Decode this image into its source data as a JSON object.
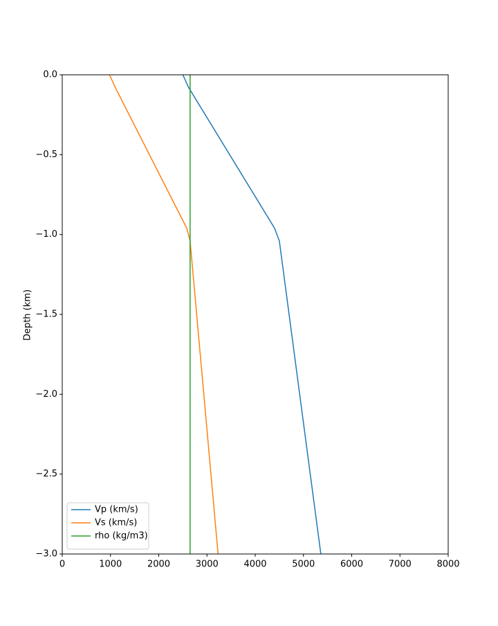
{
  "chart_data": {
    "type": "line",
    "ylabel": "Depth (km)",
    "y": [
      0,
      -0.08,
      -0.96,
      -1.04,
      -3.0
    ],
    "series": [
      {
        "name": "Vp (km/s)",
        "color": "#1f77b4",
        "values": [
          2500,
          2620,
          4400,
          4500,
          5360
        ]
      },
      {
        "name": "Vs (km/s)",
        "color": "#ff7f0e",
        "values": [
          980,
          1100,
          2580,
          2650,
          3230
        ]
      },
      {
        "name": "rho (kg/m3)",
        "color": "#2ca02c",
        "values": [
          2650,
          2650,
          2650,
          2650,
          2650
        ]
      }
    ],
    "xlim": [
      0,
      8000
    ],
    "xticks": [
      0,
      1000,
      2000,
      3000,
      4000,
      5000,
      6000,
      7000,
      8000
    ],
    "ylim": [
      -3.0,
      0.0
    ],
    "yticks": [
      {
        "value": 0,
        "label": "0.0"
      },
      {
        "value": -0.5,
        "label": "−0.5"
      },
      {
        "value": -1.0,
        "label": "−1.0"
      },
      {
        "value": -1.5,
        "label": "−1.5"
      },
      {
        "value": -2.0,
        "label": "−2.0"
      },
      {
        "value": -2.5,
        "label": "−2.5"
      },
      {
        "value": -3.0,
        "label": "−3.0"
      }
    ],
    "legend": "lower left"
  }
}
